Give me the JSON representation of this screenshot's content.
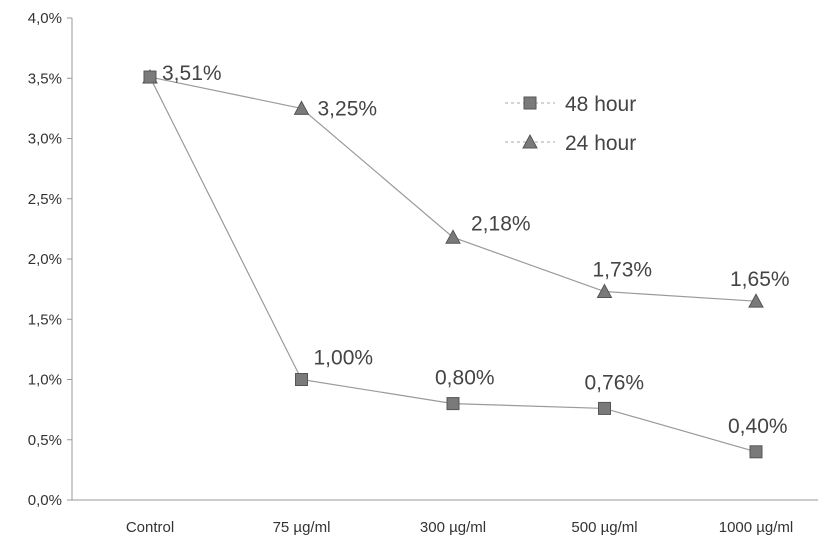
{
  "chart_data": {
    "type": "line",
    "categories": [
      "Control",
      "75 µg/ml",
      "300 µg/ml",
      "500 µg/ml",
      "1000 µg/ml"
    ],
    "ylim": [
      0,
      4.0
    ],
    "yticks": [
      {
        "value": 0.0,
        "label": "0,0%"
      },
      {
        "value": 0.5,
        "label": "0,5%"
      },
      {
        "value": 1.0,
        "label": "1,0%"
      },
      {
        "value": 1.5,
        "label": "1,5%"
      },
      {
        "value": 2.0,
        "label": "2,0%"
      },
      {
        "value": 2.5,
        "label": "2,5%"
      },
      {
        "value": 3.0,
        "label": "3,0%"
      },
      {
        "value": 3.5,
        "label": "3,5%"
      },
      {
        "value": 4.0,
        "label": "4,0%"
      }
    ],
    "legend_position": "top-right",
    "grid": false,
    "series": [
      {
        "name": "48 hour",
        "marker": "square",
        "color": "#777777",
        "values": [
          3.51,
          1.0,
          0.8,
          0.76,
          0.4
        ],
        "labels": [
          "3,51%",
          "1,00%",
          "0,80%",
          "0,76%",
          "0,40%"
        ]
      },
      {
        "name": "24 hour",
        "marker": "triangle",
        "color": "#777777",
        "values": [
          3.51,
          3.25,
          2.18,
          1.73,
          1.65
        ],
        "labels": [
          "",
          "3,25%",
          "2,18%",
          "1,73%",
          "1,65%"
        ]
      }
    ]
  }
}
